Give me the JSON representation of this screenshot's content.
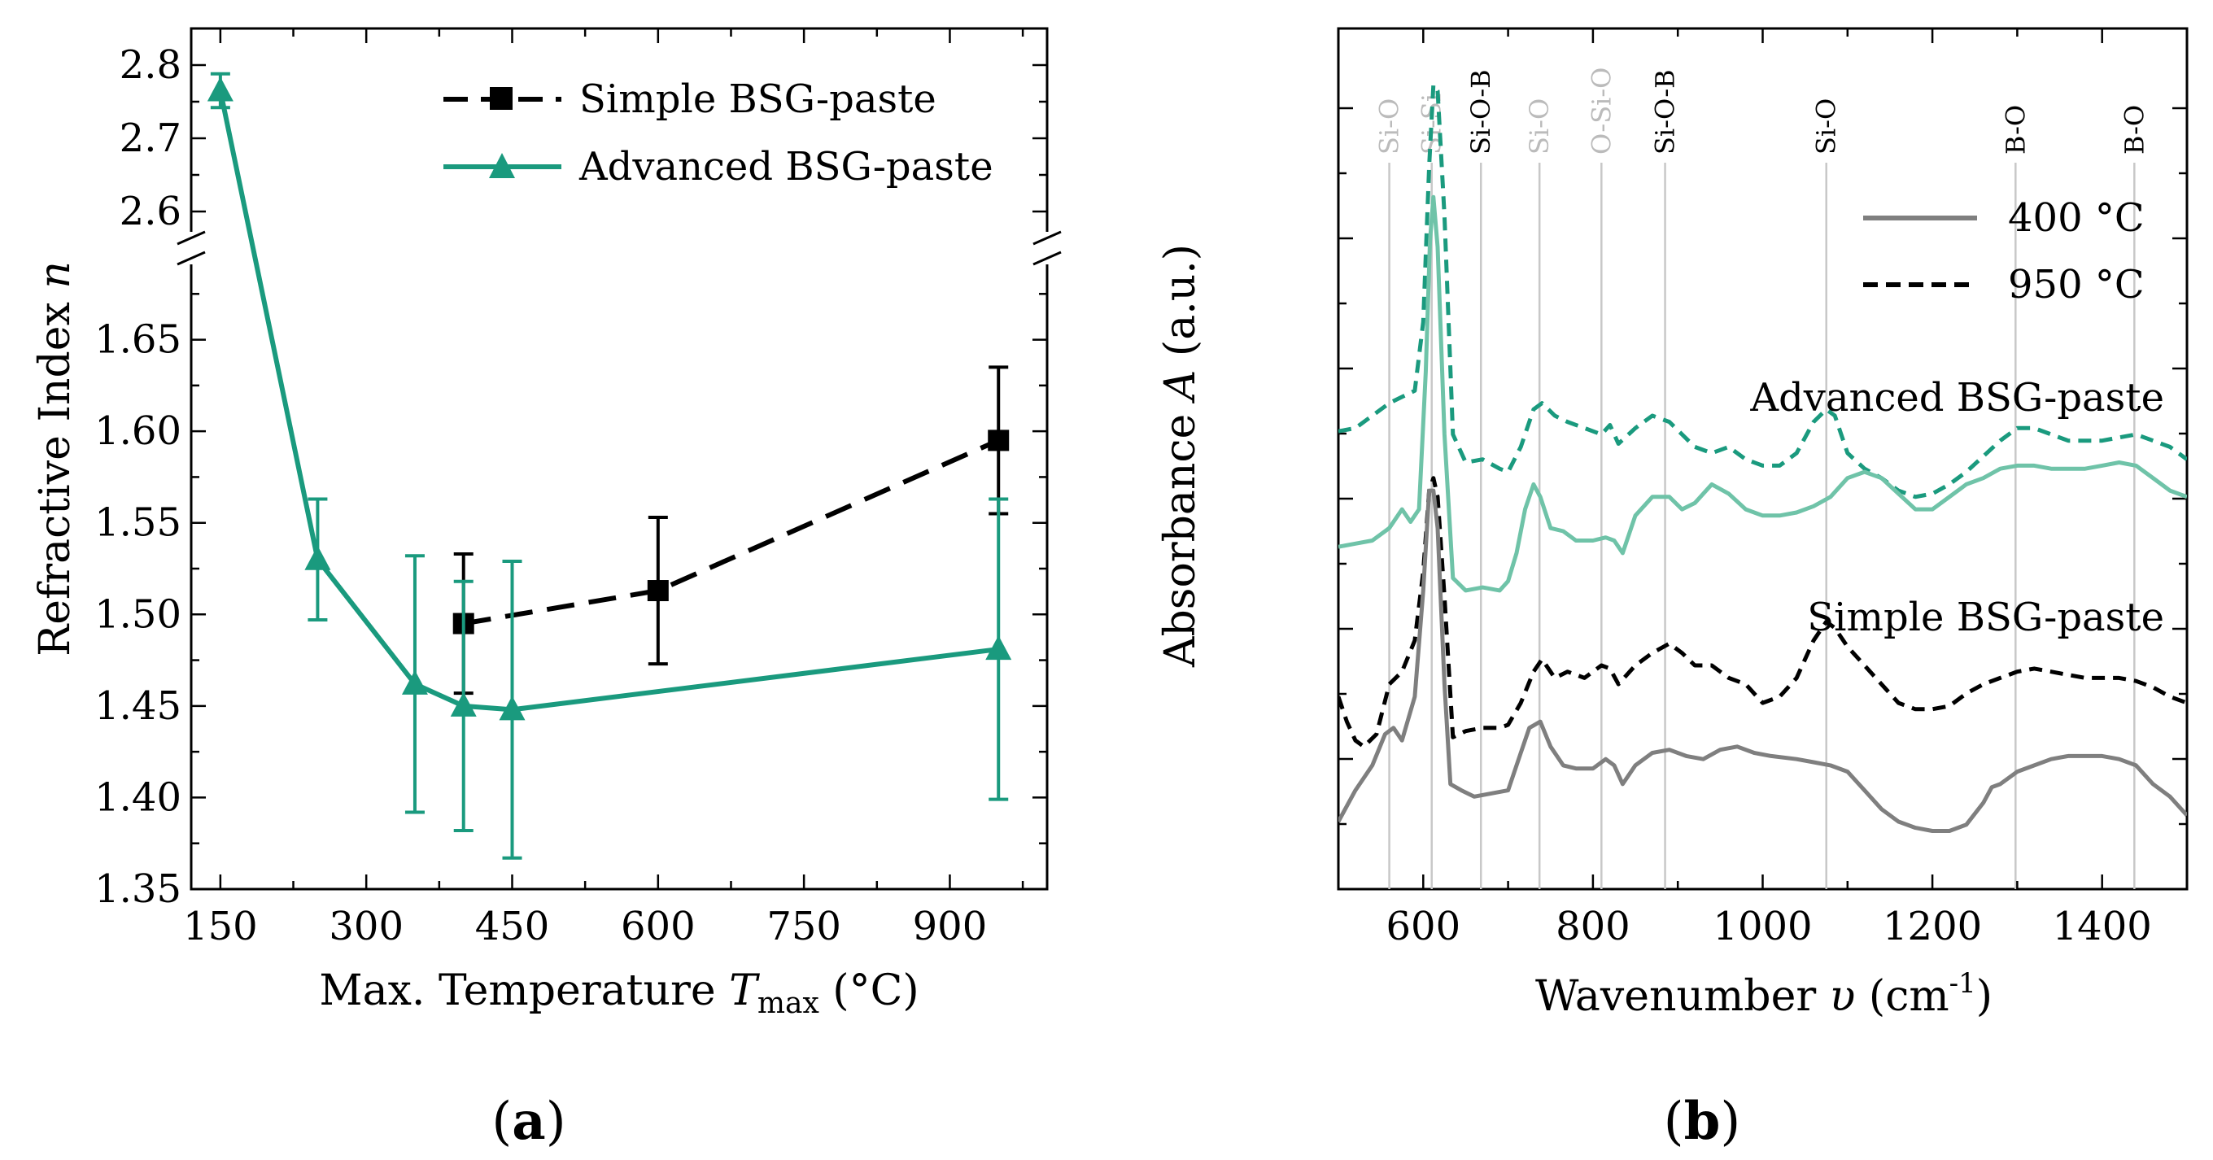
{
  "chart_data": [
    {
      "type": "line",
      "panel_label_open": "(",
      "panel_label_letter": "a",
      "panel_label_close": ")",
      "ylabel": "Refractive Index n",
      "ylabel_main": "Refractive Index ",
      "ylabel_var": "n",
      "xlabel_pre": "Max. Temperature ",
      "xlabel_var": "T",
      "xlabel_sub": "max",
      "xlabel_post": " (°C)",
      "xlim": [
        120,
        1000
      ],
      "xticks": [
        "150",
        "300",
        "450",
        "600",
        "750",
        "900"
      ],
      "ylim_lower": [
        1.35,
        1.7
      ],
      "yticks_lower": [
        "1.35",
        "1.40",
        "1.45",
        "1.50",
        "1.55",
        "1.60",
        "1.65"
      ],
      "ylim_upper": [
        2.55,
        2.85
      ],
      "yticks_upper": [
        "2.6",
        "2.7",
        "2.8"
      ],
      "legend_position": "top-right",
      "series": [
        {
          "name": "Simple BSG-paste",
          "color": "#000000",
          "marker": "square",
          "linestyle": "dashed",
          "x": [
            400,
            600,
            950
          ],
          "y": [
            1.495,
            1.513,
            1.595
          ],
          "err": [
            0.038,
            0.04,
            0.04
          ]
        },
        {
          "name": "Advanced BSG-paste",
          "color": "#1a9a7e",
          "marker": "triangle",
          "linestyle": "solid",
          "x": [
            150,
            250,
            350,
            400,
            450,
            950
          ],
          "y": [
            2.765,
            1.53,
            1.462,
            1.45,
            1.448,
            1.481
          ],
          "err": [
            0.023,
            0.033,
            0.07,
            0.068,
            0.081,
            0.082
          ]
        }
      ]
    },
    {
      "type": "line",
      "panel_label_open": "(",
      "panel_label_letter": "b",
      "panel_label_close": ")",
      "ylabel": "Absorbance A (a.u.)",
      "ylabel_main": "Absorbance ",
      "ylabel_var": "A",
      "ylabel_post": " (a.u.)",
      "xlabel_pre": "Wavenumber ",
      "xlabel_var": "υ",
      "xlabel_post": " (cm",
      "xlabel_sup": "-1",
      "xlabel_close": ")",
      "xlim": [
        500,
        1500
      ],
      "xticks": [
        "600",
        "800",
        "1000",
        "1200",
        "1400"
      ],
      "ylim": [
        0,
        13
      ],
      "legend_position": "top-right",
      "legend": [
        {
          "name": "400 °C",
          "linestyle": "solid",
          "color": "#7f7f7f"
        },
        {
          "name": "950 °C",
          "linestyle": "dashed",
          "color": "#000000"
        }
      ],
      "annotations": {
        "advanced": "Advanced BSG-paste",
        "simple": "Simple BSG-paste"
      },
      "bond_lines": [
        {
          "label": "Si-O",
          "x": 560,
          "color": "#bbbbbb"
        },
        {
          "label": "Si-Si",
          "x": 610,
          "color": "#bbbbbb"
        },
        {
          "label": "Si-O-B",
          "x": 668,
          "color": "#000000"
        },
        {
          "label": "Si-O",
          "x": 737,
          "color": "#bbbbbb"
        },
        {
          "label": "O-Si-O",
          "x": 810,
          "color": "#bbbbbb"
        },
        {
          "label": "Si-O-B",
          "x": 885,
          "color": "#000000"
        },
        {
          "label": "Si-O",
          "x": 1075,
          "color": "#000000"
        },
        {
          "label": "B-O",
          "x": 1298,
          "color": "#000000"
        },
        {
          "label": "B-O",
          "x": 1438,
          "color": "#000000"
        }
      ],
      "series": [
        {
          "name": "Advanced BSG-paste 950 °C",
          "color": "#1a9a7e",
          "linestyle": "dashed",
          "x": [
            500,
            520,
            540,
            560,
            575,
            590,
            600,
            607,
            612,
            617,
            625,
            635,
            650,
            670,
            690,
            700,
            715,
            730,
            740,
            755,
            770,
            790,
            810,
            820,
            830,
            850,
            870,
            890,
            905,
            920,
            940,
            960,
            980,
            1000,
            1020,
            1040,
            1060,
            1075,
            1085,
            1100,
            1120,
            1140,
            1160,
            1180,
            1200,
            1220,
            1240,
            1260,
            1280,
            1300,
            1320,
            1340,
            1360,
            1380,
            1400,
            1420,
            1440,
            1460,
            1480,
            1500
          ],
          "y": [
            6.55,
            6.6,
            6.8,
            7.0,
            7.1,
            7.2,
            8.3,
            10.8,
            12.1,
            12.0,
            10.0,
            6.5,
            6.05,
            6.1,
            5.95,
            5.9,
            6.3,
            6.9,
            7.0,
            6.8,
            6.7,
            6.6,
            6.5,
            6.65,
            6.35,
            6.6,
            6.8,
            6.7,
            6.5,
            6.3,
            6.2,
            6.3,
            6.1,
            6.0,
            6.0,
            6.2,
            6.7,
            6.9,
            6.8,
            6.2,
            5.95,
            5.8,
            5.6,
            5.5,
            5.55,
            5.7,
            5.9,
            6.15,
            6.4,
            6.6,
            6.6,
            6.5,
            6.4,
            6.4,
            6.4,
            6.45,
            6.5,
            6.4,
            6.3,
            6.1
          ]
        },
        {
          "name": "Advanced BSG-paste 400 °C",
          "color": "#6fc3a8",
          "linestyle": "solid",
          "x": [
            500,
            520,
            540,
            560,
            575,
            585,
            595,
            603,
            608,
            612,
            617,
            625,
            635,
            650,
            670,
            690,
            700,
            710,
            720,
            730,
            738,
            750,
            765,
            780,
            800,
            815,
            825,
            835,
            850,
            870,
            890,
            905,
            920,
            940,
            960,
            980,
            1000,
            1020,
            1040,
            1060,
            1080,
            1100,
            1120,
            1140,
            1160,
            1180,
            1200,
            1220,
            1240,
            1260,
            1280,
            1300,
            1320,
            1340,
            1360,
            1380,
            1400,
            1420,
            1440,
            1460,
            1480,
            1500
          ],
          "y": [
            4.7,
            4.75,
            4.8,
            5.0,
            5.3,
            5.1,
            5.3,
            7.5,
            9.6,
            10.3,
            9.5,
            6.5,
            4.2,
            4.0,
            4.05,
            4.0,
            4.15,
            4.6,
            5.3,
            5.7,
            5.5,
            5.0,
            4.95,
            4.8,
            4.8,
            4.85,
            4.8,
            4.6,
            5.2,
            5.5,
            5.5,
            5.3,
            5.4,
            5.7,
            5.55,
            5.3,
            5.2,
            5.2,
            5.25,
            5.35,
            5.5,
            5.8,
            5.9,
            5.8,
            5.55,
            5.3,
            5.3,
            5.5,
            5.7,
            5.8,
            5.95,
            6.0,
            6.0,
            5.95,
            5.95,
            5.95,
            6.0,
            6.05,
            6.0,
            5.8,
            5.6,
            5.5
          ]
        },
        {
          "name": "Simple BSG-paste 950 °C",
          "color": "#000000",
          "linestyle": "dashed",
          "x": [
            500,
            510,
            520,
            530,
            545,
            560,
            575,
            590,
            600,
            607,
            612,
            617,
            625,
            635,
            650,
            670,
            690,
            700,
            715,
            730,
            740,
            755,
            770,
            790,
            810,
            820,
            830,
            850,
            870,
            890,
            905,
            920,
            940,
            960,
            980,
            1000,
            1020,
            1040,
            1060,
            1075,
            1085,
            1100,
            1120,
            1140,
            1160,
            1180,
            1200,
            1220,
            1240,
            1260,
            1280,
            1300,
            1320,
            1340,
            1360,
            1380,
            1400,
            1420,
            1440,
            1460,
            1480,
            1500
          ],
          "y": [
            2.3,
            1.9,
            1.6,
            1.5,
            1.7,
            2.5,
            2.7,
            3.2,
            4.3,
            5.6,
            5.8,
            5.5,
            3.9,
            1.65,
            1.75,
            1.8,
            1.8,
            1.85,
            2.2,
            2.7,
            2.9,
            2.6,
            2.7,
            2.6,
            2.8,
            2.75,
            2.5,
            2.8,
            3.0,
            3.15,
            3.0,
            2.8,
            2.8,
            2.6,
            2.5,
            2.2,
            2.3,
            2.6,
            3.2,
            3.5,
            3.4,
            3.1,
            2.8,
            2.5,
            2.2,
            2.1,
            2.1,
            2.15,
            2.35,
            2.5,
            2.6,
            2.7,
            2.75,
            2.7,
            2.65,
            2.6,
            2.6,
            2.6,
            2.55,
            2.45,
            2.3,
            2.2
          ]
        },
        {
          "name": "Simple BSG-paste 400 °C",
          "color": "#7f7f7f",
          "linestyle": "solid",
          "x": [
            500,
            520,
            540,
            555,
            565,
            575,
            590,
            600,
            607,
            612,
            617,
            625,
            632,
            645,
            660,
            680,
            700,
            715,
            725,
            738,
            750,
            765,
            780,
            800,
            815,
            825,
            835,
            850,
            870,
            890,
            910,
            930,
            950,
            970,
            990,
            1010,
            1040,
            1060,
            1080,
            1100,
            1120,
            1140,
            1160,
            1180,
            1200,
            1220,
            1240,
            1260,
            1270,
            1280,
            1300,
            1320,
            1340,
            1360,
            1380,
            1400,
            1420,
            1440,
            1460,
            1480,
            1500
          ],
          "y": [
            0.3,
            0.8,
            1.2,
            1.7,
            1.8,
            1.6,
            2.3,
            4.0,
            5.6,
            5.6,
            5.0,
            2.5,
            0.9,
            0.8,
            0.7,
            0.75,
            0.8,
            1.4,
            1.8,
            1.9,
            1.5,
            1.2,
            1.15,
            1.15,
            1.3,
            1.2,
            0.9,
            1.2,
            1.4,
            1.45,
            1.35,
            1.3,
            1.45,
            1.5,
            1.4,
            1.35,
            1.3,
            1.25,
            1.2,
            1.1,
            0.8,
            0.5,
            0.3,
            0.2,
            0.15,
            0.15,
            0.25,
            0.6,
            0.85,
            0.9,
            1.1,
            1.2,
            1.3,
            1.35,
            1.35,
            1.35,
            1.3,
            1.2,
            0.9,
            0.7,
            0.4
          ]
        }
      ]
    }
  ]
}
